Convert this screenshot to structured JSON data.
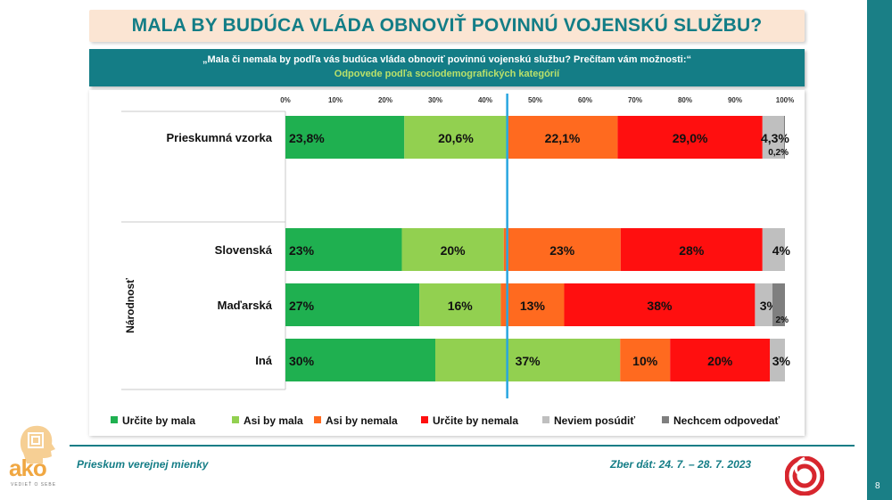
{
  "title": "MALA BY BUDÚCA VLÁDA OBNOVIŤ POVINNÚ VOJENSKÚ SLUŽBU?",
  "question": "„Mala či nemala by podľa vás budúca vláda obnoviť povinnú vojenskú službu? Prečítam vám možnosti:“",
  "subquestion": "Odpovede podľa sociodemografických kategórií",
  "footer": {
    "left": "Prieskum verejnej mienky",
    "right": "Zber dát: 24. 7. – 28. 7. 2023",
    "page": "8"
  },
  "logo": {
    "text": "ako",
    "sub": "VEDIEŤ O SEBE"
  },
  "colors": {
    "title": "#137d86",
    "band": "#147d86",
    "urcite_mala": "#1fb050",
    "asi_mala": "#92d050",
    "asi_nemala": "#ff6a1f",
    "urcite_nemala": "#ff0f0f",
    "neviem": "#bfbfbf",
    "nechcem": "#7f7f7f",
    "midline": "#29a6e0"
  },
  "chart_data": {
    "type": "bar",
    "orientation": "horizontal",
    "stacked": true,
    "xlim": [
      0,
      100
    ],
    "xticks": [
      "0%",
      "10%",
      "20%",
      "30%",
      "40%",
      "50%",
      "60%",
      "70%",
      "80%",
      "90%",
      "100%"
    ],
    "reference_line_at": 44.4,
    "group_label": "Národnosť",
    "categories": [
      "Prieskumná vzorka",
      "Slovenská",
      "Maďarská",
      "Iná"
    ],
    "labels": [
      [
        "23,8%",
        "20,6%",
        "22,1%",
        "29,0%",
        "4,3%",
        "0,2%"
      ],
      [
        "23%",
        "20%",
        "23%",
        "28%",
        "4%",
        ""
      ],
      [
        "27%",
        "16%",
        "13%",
        "38%",
        "3%",
        "2%"
      ],
      [
        "30%",
        "37%",
        "10%",
        "20%",
        "3%",
        ""
      ]
    ],
    "series": [
      {
        "name": "Určite by mala",
        "values": [
          23.8,
          23.3,
          26.8,
          30.0
        ]
      },
      {
        "name": "Asi by mala",
        "values": [
          20.6,
          20.4,
          16.3,
          37.0
        ]
      },
      {
        "name": "Asi by nemala",
        "values": [
          22.1,
          23.4,
          12.7,
          10.0
        ]
      },
      {
        "name": "Určite by nemala",
        "values": [
          29.0,
          28.4,
          38.2,
          20.0
        ]
      },
      {
        "name": "Neviem posúdiť",
        "values": [
          4.3,
          4.5,
          3.5,
          3.0
        ]
      },
      {
        "name": "Nechcem odpovedať",
        "values": [
          0.2,
          0.0,
          2.5,
          0.0
        ]
      }
    ],
    "legend_position": "bottom"
  }
}
